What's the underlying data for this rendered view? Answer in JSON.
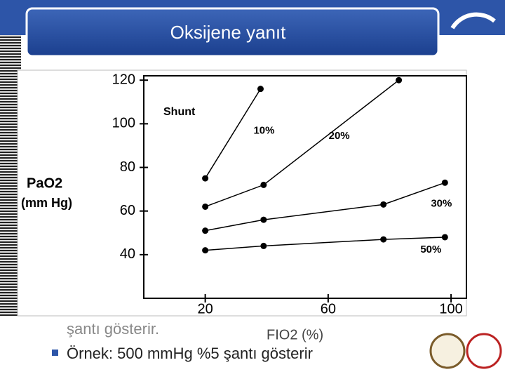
{
  "slide": {
    "title": "Oksijene yanıt",
    "bullets": [
      "şantı gösterir.",
      "Örnek: 500 mmHg %5 şantı gösterir"
    ]
  },
  "chart_data": {
    "type": "line",
    "title": "Shunt",
    "xlabel": "FIO2 (%)",
    "ylabel": [
      "PaO2",
      "(mm Hg)"
    ],
    "xlim": [
      0,
      105
    ],
    "ylim": [
      20,
      122
    ],
    "xticks": [
      20,
      60,
      100
    ],
    "yticks": [
      40,
      60,
      80,
      100,
      120
    ],
    "series": [
      {
        "name": "10%",
        "color": "#000000",
        "x": [
          20,
          38
        ],
        "values": [
          75,
          116
        ]
      },
      {
        "name": "20%",
        "color": "#000000",
        "x": [
          20,
          39,
          83
        ],
        "values": [
          62,
          72,
          120
        ]
      },
      {
        "name": "30%",
        "color": "#000000",
        "x": [
          20,
          39,
          78,
          98
        ],
        "values": [
          51,
          56,
          63,
          73
        ]
      },
      {
        "name": "50%",
        "color": "#000000",
        "x": [
          20,
          39,
          78,
          98
        ],
        "values": [
          42,
          44,
          47,
          48
        ]
      }
    ]
  }
}
